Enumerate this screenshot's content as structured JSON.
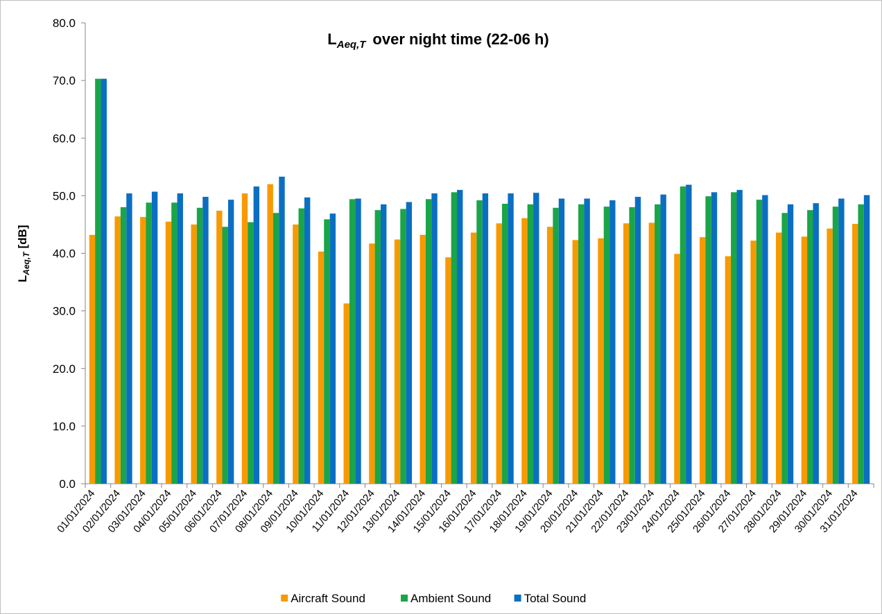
{
  "chart_data": {
    "type": "bar",
    "title": [
      "L",
      "Aeq,T",
      "over night time (22-06 h)"
    ],
    "y_label": [
      "L",
      "Aeq,T",
      "[dB]"
    ],
    "categories": [
      "01/01/2024",
      "02/01/2024",
      "03/01/2024",
      "04/01/2024",
      "05/01/2024",
      "06/01/2024",
      "07/01/2024",
      "08/01/2024",
      "09/01/2024",
      "10/01/2024",
      "11/01/2024",
      "12/01/2024",
      "13/01/2024",
      "14/01/2024",
      "15/01/2024",
      "16/01/2024",
      "17/01/2024",
      "18/01/2024",
      "19/01/2024",
      "20/01/2024",
      "21/01/2024",
      "22/01/2024",
      "23/01/2024",
      "24/01/2024",
      "25/01/2024",
      "26/01/2024",
      "27/01/2024",
      "28/01/2024",
      "29/01/2024",
      "30/01/2024",
      "31/01/2024"
    ],
    "series": [
      {
        "name": "Aircraft Sound",
        "color": "#f79a00",
        "values": [
          43.2,
          46.4,
          46.3,
          45.5,
          45.0,
          47.4,
          50.4,
          52.0,
          45.0,
          40.3,
          31.3,
          41.7,
          42.4,
          43.2,
          39.3,
          43.6,
          45.2,
          46.1,
          44.6,
          42.3,
          42.6,
          45.2,
          45.3,
          39.9,
          42.8,
          39.5,
          42.2,
          43.6,
          42.9,
          44.3,
          45.1
        ]
      },
      {
        "name": "Ambient Sound",
        "color": "#1aa548",
        "values": [
          70.3,
          48.0,
          48.8,
          48.8,
          47.9,
          44.6,
          45.4,
          47.0,
          47.8,
          45.9,
          49.4,
          47.5,
          47.7,
          49.4,
          50.6,
          49.2,
          48.6,
          48.5,
          47.9,
          48.5,
          48.1,
          48.0,
          48.5,
          51.6,
          49.9,
          50.6,
          49.3,
          47.0,
          47.5,
          48.1,
          48.5
        ]
      },
      {
        "name": "Total Sound",
        "color": "#0a6fc2",
        "values": [
          70.3,
          50.4,
          50.7,
          50.4,
          49.8,
          49.3,
          51.6,
          53.3,
          49.7,
          46.9,
          49.5,
          48.5,
          48.9,
          50.4,
          51.0,
          50.4,
          50.4,
          50.5,
          49.5,
          49.5,
          49.2,
          49.8,
          50.2,
          51.9,
          50.6,
          51.0,
          50.1,
          48.5,
          48.7,
          49.5,
          50.1
        ]
      }
    ],
    "ylim": [
      0,
      80
    ],
    "yticks": [
      {
        "value": 0,
        "label": "0.0"
      },
      {
        "value": 10,
        "label": "10.0"
      },
      {
        "value": 20,
        "label": "20.0"
      },
      {
        "value": 30,
        "label": "30.0"
      },
      {
        "value": 40,
        "label": "40.0"
      },
      {
        "value": 50,
        "label": "50.0"
      },
      {
        "value": 60,
        "label": "60.0"
      },
      {
        "value": 70,
        "label": "70.0"
      },
      {
        "value": 80,
        "label": "80.0"
      }
    ],
    "grid": false,
    "legend": "bottom"
  }
}
